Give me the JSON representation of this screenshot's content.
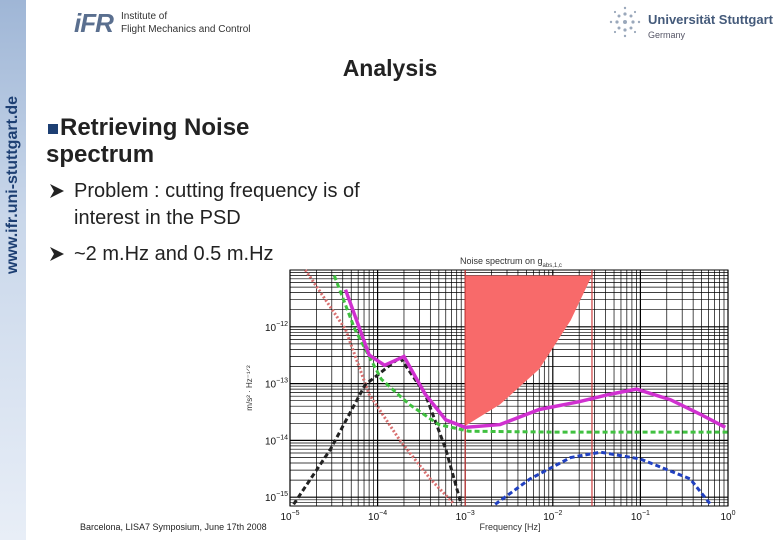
{
  "header": {
    "logo": "iFR",
    "institute": [
      "Institute of",
      "Flight Mechanics and Control"
    ],
    "university": "Universität Stuttgart",
    "country": "Germany"
  },
  "sidebar": "www.ifr.uni-stuttgart.de",
  "title": "Analysis",
  "bullet": "Retrieving Noise spectrum",
  "sub_bullets": [
    "Problem : cutting frequency is of interest in the PSD",
    "~2 m.Hz and 0.5 m.Hz"
  ],
  "footer": "Barcelona, LISA7 Symposium, June 17th 2008",
  "chart_data": {
    "type": "line",
    "title": "Noise spectrum on g",
    "title_subscript": "abs,1,c",
    "x_label": "Frequency [Hz]",
    "y_label": "m/s² · Hz⁻¹ᐟ²",
    "log_x": true,
    "log_y": true,
    "grid": true,
    "minor_grid": true,
    "xlim": [
      1e-05,
      1
    ],
    "ylim": [
      7e-16,
      1e-11
    ],
    "xticks": [
      {
        "value": 1e-05,
        "label": "10−5"
      },
      {
        "value": 0.0001,
        "label": "10−4"
      },
      {
        "value": 0.001,
        "label": "10−3"
      },
      {
        "value": 0.01,
        "label": "10−2"
      },
      {
        "value": 0.1,
        "label": "10−1"
      },
      {
        "value": 1,
        "label": "100"
      }
    ],
    "yticks": [
      {
        "value": 1e-15,
        "label": "10−15"
      },
      {
        "value": 1e-14,
        "label": "10−14"
      },
      {
        "value": 1e-13,
        "label": "10−13"
      },
      {
        "value": 1e-12,
        "label": "10−12"
      }
    ],
    "band": {
      "color": "#f86a6a",
      "x": [
        0.001,
        0.0025,
        0.007,
        0.016,
        0.028
      ],
      "lower": [
        1.8e-14,
        4.3e-14,
        1.8e-13,
        1.3e-12,
        8e-12
      ],
      "upper": [
        8e-12,
        8e-12,
        8e-12,
        8e-12,
        8e-12
      ]
    },
    "vlines": {
      "color": "#d04040",
      "x": [
        0.001,
        0.028
      ]
    },
    "series": [
      {
        "color": "#d87070",
        "dash": "dotted",
        "x": [
          1.5e-05,
          4.3e-05,
          8e-05,
          0.00018,
          0.0004,
          0.00075
        ],
        "values": [
          1e-11,
          9e-13,
          6.5e-14,
          1e-14,
          2.1e-15,
          7.5e-16
        ]
      },
      {
        "color": "#222222",
        "dash": "dashed",
        "x": [
          1.1e-05,
          2.9e-05,
          7.2e-05,
          0.00018,
          0.00035,
          0.0006,
          0.0009
        ],
        "values": [
          7.5e-16,
          7e-15,
          9.5e-14,
          2.9e-13,
          6.5e-14,
          7e-15,
          7.5e-16
        ]
      },
      {
        "color": "#2040c0",
        "dash": "dashed",
        "x": [
          0.0022,
          0.0055,
          0.016,
          0.035,
          0.1,
          0.37,
          0.63
        ],
        "values": [
          7.5e-16,
          2.1e-15,
          5e-15,
          6.2e-15,
          4.7e-15,
          2.1e-15,
          7.5e-16
        ]
      },
      {
        "color": "#40c040",
        "dash": "dashed",
        "x": [
          3.2e-05,
          5.5e-05,
          0.00011,
          0.00023,
          0.0005,
          0.0011,
          0.01,
          0.1,
          1
        ],
        "values": [
          8e-12,
          9e-13,
          1.2e-13,
          4.3e-14,
          1.9e-14,
          1.45e-14,
          1.4e-14,
          1.4e-14,
          1.4e-14
        ]
      },
      {
        "color": "#d030d0",
        "dash": "solid",
        "x": [
          4.3e-05,
          8e-05,
          0.00012,
          0.0002,
          0.00035,
          0.0006,
          0.001,
          0.0025,
          0.007,
          0.02,
          0.045,
          0.09,
          0.22,
          0.48,
          0.93
        ],
        "values": [
          4.5e-12,
          3.2e-13,
          2.1e-13,
          3e-13,
          6.5e-14,
          2.3e-14,
          1.7e-14,
          1.9e-14,
          3.5e-14,
          4.8e-14,
          6.5e-14,
          8e-14,
          5.2e-14,
          2.9e-14,
          1.7e-14
        ]
      }
    ]
  }
}
